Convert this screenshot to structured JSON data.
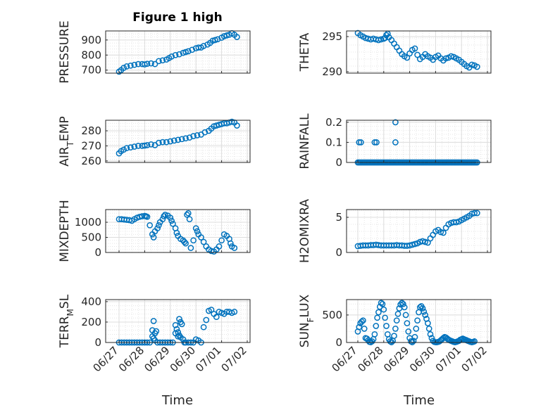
{
  "figure": {
    "title": "Figure 1 high",
    "xlabel": "Time",
    "x_tick_labels": [
      "06/27",
      "06/28",
      "06/29",
      "06/30",
      "07/01",
      "07/02"
    ]
  },
  "colors": {
    "marker": "#0072BD",
    "grid": "#dcdcdc",
    "axis": "#262626"
  },
  "chart_data": [
    {
      "type": "scatter",
      "ylabel": "PRESSURE",
      "ylabel_sub": "",
      "xlim": [
        0,
        5
      ],
      "ylim": [
        680,
        960
      ],
      "yticks": [
        700,
        800,
        900
      ],
      "ytick_labels": [
        "700",
        "800",
        "900"
      ],
      "x": [
        0.0,
        0.08,
        0.18,
        0.3,
        0.45,
        0.6,
        0.75,
        0.9,
        1.0,
        1.1,
        1.25,
        1.4,
        1.55,
        1.7,
        1.85,
        1.95,
        2.05,
        2.2,
        2.35,
        2.5,
        2.6,
        2.7,
        2.85,
        3.0,
        3.1,
        3.2,
        3.3,
        3.45,
        3.55,
        3.65,
        3.75,
        3.85,
        4.0,
        4.1,
        4.2,
        4.3,
        4.4,
        4.5,
        4.6
      ],
      "y": [
        690,
        700,
        715,
        725,
        730,
        735,
        740,
        740,
        738,
        742,
        745,
        740,
        760,
        765,
        770,
        780,
        790,
        800,
        805,
        815,
        820,
        825,
        835,
        845,
        850,
        850,
        860,
        870,
        880,
        895,
        900,
        905,
        915,
        925,
        930,
        935,
        945,
        935,
        920
      ]
    },
    {
      "type": "scatter",
      "ylabel": "THETA",
      "ylabel_sub": "",
      "xlim": [
        0,
        5
      ],
      "ylim": [
        289.8,
        295.8
      ],
      "yticks": [
        290,
        295
      ],
      "ytick_labels": [
        "290",
        "295"
      ],
      "x": [
        0.0,
        0.1,
        0.2,
        0.3,
        0.4,
        0.5,
        0.6,
        0.7,
        0.8,
        0.9,
        1.0,
        1.05,
        1.1,
        1.15,
        1.2,
        1.3,
        1.4,
        1.5,
        1.6,
        1.7,
        1.8,
        1.9,
        2.0,
        2.1,
        2.2,
        2.3,
        2.4,
        2.5,
        2.6,
        2.7,
        2.8,
        2.9,
        3.0,
        3.1,
        3.2,
        3.3,
        3.4,
        3.5,
        3.6,
        3.7,
        3.8,
        3.9,
        4.0,
        4.1,
        4.2,
        4.3,
        4.4,
        4.5,
        4.6
      ],
      "y": [
        295.5,
        295.2,
        295.0,
        294.8,
        294.7,
        294.6,
        294.7,
        294.6,
        294.5,
        294.6,
        294.7,
        294.8,
        295.2,
        295.4,
        294.9,
        294.5,
        294.0,
        293.5,
        293.0,
        292.5,
        292.2,
        292.0,
        292.6,
        293.1,
        293.3,
        292.4,
        291.8,
        292.1,
        292.5,
        292.2,
        292.0,
        291.7,
        292.1,
        292.3,
        291.9,
        291.6,
        291.9,
        292.0,
        292.2,
        292.1,
        291.9,
        291.7,
        291.4,
        291.1,
        290.8,
        290.6,
        291.0,
        290.9,
        290.7
      ]
    },
    {
      "type": "scatter",
      "ylabel": "AIR",
      "ylabel_sub": "T",
      "ylabel_rest": "EMP",
      "xlim": [
        0,
        5
      ],
      "ylim": [
        259,
        287
      ],
      "yticks": [
        260,
        270,
        280
      ],
      "ytick_labels": [
        "260",
        "270",
        "280"
      ],
      "x": [
        0.0,
        0.08,
        0.18,
        0.3,
        0.45,
        0.6,
        0.75,
        0.9,
        1.0,
        1.1,
        1.25,
        1.4,
        1.55,
        1.7,
        1.85,
        2.0,
        2.15,
        2.3,
        2.45,
        2.6,
        2.75,
        2.9,
        3.05,
        3.2,
        3.35,
        3.5,
        3.6,
        3.7,
        3.8,
        3.9,
        4.0,
        4.1,
        4.2,
        4.3,
        4.4,
        4.5,
        4.6
      ],
      "y": [
        265,
        266.5,
        267.5,
        268.5,
        269,
        269.5,
        270,
        270,
        270.2,
        270.5,
        271,
        270.5,
        272,
        272.5,
        272.5,
        273,
        273.5,
        274,
        274.5,
        275,
        275.5,
        276.5,
        277,
        277.5,
        279,
        280,
        281.5,
        283,
        283.5,
        284,
        284.5,
        285,
        285,
        285.5,
        286,
        285.5,
        283.5
      ]
    },
    {
      "type": "scatter",
      "ylabel": "RAINFALL",
      "ylabel_sub": "",
      "xlim": [
        0,
        5
      ],
      "ylim": [
        0,
        0.21
      ],
      "yticks": [
        0,
        0.1,
        0.2
      ],
      "ytick_labels": [
        "0",
        "0.1",
        "0.2"
      ],
      "x": [
        0.0,
        0.05,
        0.1,
        0.15,
        0.2,
        0.25,
        0.3,
        0.35,
        0.4,
        0.45,
        0.5,
        0.55,
        0.6,
        0.65,
        0.7,
        0.75,
        0.8,
        0.85,
        0.9,
        0.95,
        1.0,
        1.05,
        1.1,
        1.15,
        1.2,
        1.25,
        1.3,
        1.35,
        1.4,
        1.45,
        1.5,
        1.55,
        1.6,
        1.65,
        1.7,
        1.75,
        1.8,
        1.85,
        1.9,
        1.95,
        2.0,
        2.05,
        2.1,
        2.15,
        2.2,
        2.25,
        2.3,
        2.35,
        2.4,
        2.45,
        2.5,
        2.55,
        2.6,
        2.65,
        2.7,
        2.75,
        2.8,
        2.85,
        2.9,
        2.95,
        3.0,
        3.05,
        3.1,
        3.15,
        3.2,
        3.25,
        3.3,
        3.35,
        3.4,
        3.45,
        3.5,
        3.55,
        3.6,
        3.65,
        3.7,
        3.75,
        3.8,
        3.85,
        3.9,
        3.95,
        4.0,
        4.05,
        4.1,
        4.15,
        4.2,
        4.25,
        4.3,
        4.35,
        4.4,
        4.45,
        4.5,
        4.55,
        4.6,
        0.05,
        0.12,
        0.65,
        0.72,
        1.45,
        1.45
      ],
      "y": [
        0,
        0,
        0,
        0,
        0,
        0,
        0,
        0,
        0,
        0,
        0,
        0,
        0,
        0,
        0,
        0,
        0,
        0,
        0,
        0,
        0,
        0,
        0,
        0,
        0,
        0,
        0,
        0,
        0,
        0,
        0,
        0,
        0,
        0,
        0,
        0,
        0,
        0,
        0,
        0,
        0,
        0,
        0,
        0,
        0,
        0,
        0,
        0,
        0,
        0,
        0,
        0,
        0,
        0,
        0,
        0,
        0,
        0,
        0,
        0,
        0,
        0,
        0,
        0,
        0,
        0,
        0,
        0,
        0,
        0,
        0,
        0,
        0,
        0,
        0,
        0,
        0,
        0,
        0,
        0,
        0,
        0,
        0,
        0,
        0,
        0,
        0,
        0,
        0,
        0,
        0,
        0,
        0,
        0.1,
        0.1,
        0.1,
        0.1,
        0.1,
        0.2
      ]
    },
    {
      "type": "scatter",
      "ylabel": "MIXDEPTH",
      "ylabel_sub": "",
      "xlim": [
        0,
        5
      ],
      "ylim": [
        0,
        1420
      ],
      "yticks": [
        0,
        500,
        1000
      ],
      "ytick_labels": [
        "0",
        "500",
        "1000"
      ],
      "x": [
        0.0,
        0.1,
        0.2,
        0.3,
        0.4,
        0.5,
        0.6,
        0.7,
        0.8,
        0.9,
        1.0,
        1.05,
        1.1,
        1.2,
        1.3,
        1.35,
        1.4,
        1.5,
        1.55,
        1.6,
        1.7,
        1.75,
        1.8,
        1.9,
        2.0,
        2.05,
        2.1,
        2.2,
        2.25,
        2.3,
        2.4,
        2.5,
        2.55,
        2.6,
        2.65,
        2.7,
        2.75,
        2.8,
        2.9,
        3.0,
        3.05,
        3.1,
        3.2,
        3.3,
        3.4,
        3.5,
        3.6,
        3.7,
        3.8,
        3.9,
        4.0,
        4.1,
        4.2,
        4.3,
        4.35,
        4.4,
        4.5
      ],
      "y": [
        1100,
        1100,
        1090,
        1080,
        1070,
        1050,
        1100,
        1150,
        1180,
        1200,
        1210,
        1200,
        1180,
        900,
        600,
        500,
        700,
        800,
        900,
        1000,
        1100,
        1200,
        1250,
        1220,
        1150,
        1050,
        950,
        800,
        650,
        550,
        450,
        400,
        350,
        300,
        1250,
        1300,
        1100,
        150,
        400,
        800,
        700,
        600,
        500,
        350,
        200,
        100,
        50,
        30,
        100,
        200,
        400,
        600,
        550,
        450,
        300,
        200,
        150
      ]
    },
    {
      "type": "scatter",
      "ylabel": "H2OMIXRA",
      "ylabel_sub": "",
      "xlim": [
        0,
        5
      ],
      "ylim": [
        0,
        6.1
      ],
      "yticks": [
        0,
        5
      ],
      "ytick_labels": [
        "0",
        "5"
      ],
      "x": [
        0.0,
        0.1,
        0.2,
        0.3,
        0.4,
        0.5,
        0.6,
        0.7,
        0.8,
        0.9,
        1.0,
        1.1,
        1.2,
        1.3,
        1.4,
        1.5,
        1.6,
        1.7,
        1.8,
        1.9,
        2.0,
        2.1,
        2.2,
        2.3,
        2.4,
        2.5,
        2.6,
        2.7,
        2.8,
        2.9,
        3.0,
        3.1,
        3.2,
        3.3,
        3.4,
        3.5,
        3.6,
        3.7,
        3.8,
        3.9,
        4.0,
        4.1,
        4.2,
        4.3,
        4.4,
        4.5,
        4.6
      ],
      "y": [
        0.9,
        0.95,
        1.0,
        1.0,
        1.0,
        1.05,
        1.05,
        1.1,
        1.05,
        1.0,
        1.0,
        1.0,
        1.0,
        1.0,
        1.0,
        1.05,
        1.0,
        1.0,
        0.95,
        0.95,
        1.0,
        1.1,
        1.2,
        1.3,
        1.5,
        1.6,
        1.5,
        1.4,
        2.0,
        2.5,
        3.0,
        3.2,
        2.9,
        2.8,
        3.5,
        4.0,
        4.2,
        4.3,
        4.3,
        4.4,
        4.6,
        4.8,
        5.0,
        5.2,
        5.5,
        5.6,
        5.6
      ]
    },
    {
      "type": "scatter",
      "ylabel": "TERR",
      "ylabel_sub": "M",
      "ylabel_rest": "SL",
      "xlim": [
        0,
        5
      ],
      "ylim": [
        0,
        420
      ],
      "yticks": [
        0,
        200,
        400
      ],
      "ytick_labels": [
        "0",
        "200",
        "400"
      ],
      "x": [
        0.0,
        0.1,
        0.2,
        0.3,
        0.4,
        0.5,
        0.6,
        0.7,
        0.8,
        0.9,
        1.0,
        1.1,
        1.2,
        1.3,
        1.35,
        1.4,
        1.45,
        1.5,
        1.6,
        1.7,
        1.8,
        1.9,
        2.0,
        2.1,
        2.2,
        2.25,
        2.3,
        2.35,
        2.4,
        2.45,
        2.5,
        2.55,
        2.6,
        2.7,
        2.8,
        2.9,
        3.0,
        3.1,
        3.2,
        3.3,
        3.4,
        3.5,
        3.6,
        3.7,
        3.8,
        3.9,
        4.0,
        4.1,
        4.2,
        4.3,
        4.4,
        4.5,
        1.3,
        1.35,
        1.4,
        2.2,
        2.3,
        2.35,
        2.4
      ],
      "y": [
        0,
        0,
        0,
        0,
        0,
        0,
        0,
        0,
        0,
        0,
        0,
        0,
        0,
        120,
        210,
        90,
        110,
        0,
        0,
        0,
        0,
        0,
        0,
        0,
        170,
        130,
        100,
        230,
        200,
        180,
        30,
        0,
        0,
        0,
        0,
        0,
        30,
        20,
        0,
        150,
        220,
        310,
        320,
        280,
        250,
        300,
        290,
        280,
        300,
        300,
        290,
        300,
        60,
        40,
        20,
        90,
        60,
        70,
        50
      ]
    },
    {
      "type": "scatter",
      "ylabel": "SUN",
      "ylabel_sub": "F",
      "ylabel_rest": "LUX",
      "xlim": [
        0,
        5
      ],
      "ylim": [
        0,
        780
      ],
      "yticks": [
        0,
        500
      ],
      "ytick_labels": [
        "0",
        "500"
      ],
      "x": [
        0.0,
        0.05,
        0.1,
        0.15,
        0.2,
        0.25,
        0.3,
        0.35,
        0.4,
        0.45,
        0.5,
        0.55,
        0.6,
        0.65,
        0.7,
        0.75,
        0.8,
        0.85,
        0.9,
        0.95,
        1.0,
        1.05,
        1.1,
        1.15,
        1.2,
        1.25,
        1.3,
        1.35,
        1.4,
        1.45,
        1.5,
        1.55,
        1.6,
        1.65,
        1.7,
        1.75,
        1.8,
        1.85,
        1.9,
        1.95,
        2.0,
        2.05,
        2.1,
        2.15,
        2.2,
        2.25,
        2.3,
        2.35,
        2.4,
        2.45,
        2.5,
        2.55,
        2.6,
        2.65,
        2.7,
        2.75,
        2.8,
        2.85,
        2.9,
        2.95,
        3.0,
        3.05,
        3.1,
        3.15,
        3.2,
        3.25,
        3.3,
        3.35,
        3.4,
        3.45,
        3.5,
        3.55,
        3.6,
        3.65,
        3.7,
        3.75,
        3.8,
        3.85,
        3.9,
        3.95,
        4.0,
        4.05,
        4.1,
        4.15,
        4.2,
        4.25,
        4.3,
        4.35,
        4.4,
        4.45,
        4.5
      ],
      "y": [
        200,
        280,
        350,
        380,
        400,
        250,
        80,
        70,
        40,
        10,
        5,
        20,
        60,
        150,
        300,
        450,
        550,
        650,
        720,
        700,
        600,
        450,
        300,
        150,
        60,
        20,
        5,
        30,
        120,
        250,
        400,
        520,
        620,
        690,
        720,
        700,
        640,
        500,
        350,
        200,
        80,
        20,
        5,
        30,
        100,
        250,
        400,
        550,
        640,
        660,
        620,
        560,
        500,
        430,
        350,
        250,
        150,
        80,
        30,
        10,
        5,
        5,
        10,
        20,
        40,
        60,
        80,
        100,
        90,
        70,
        50,
        40,
        30,
        20,
        10,
        5,
        10,
        20,
        30,
        50,
        60,
        70,
        60,
        50,
        40,
        30,
        20,
        10,
        5,
        10,
        20
      ]
    }
  ]
}
